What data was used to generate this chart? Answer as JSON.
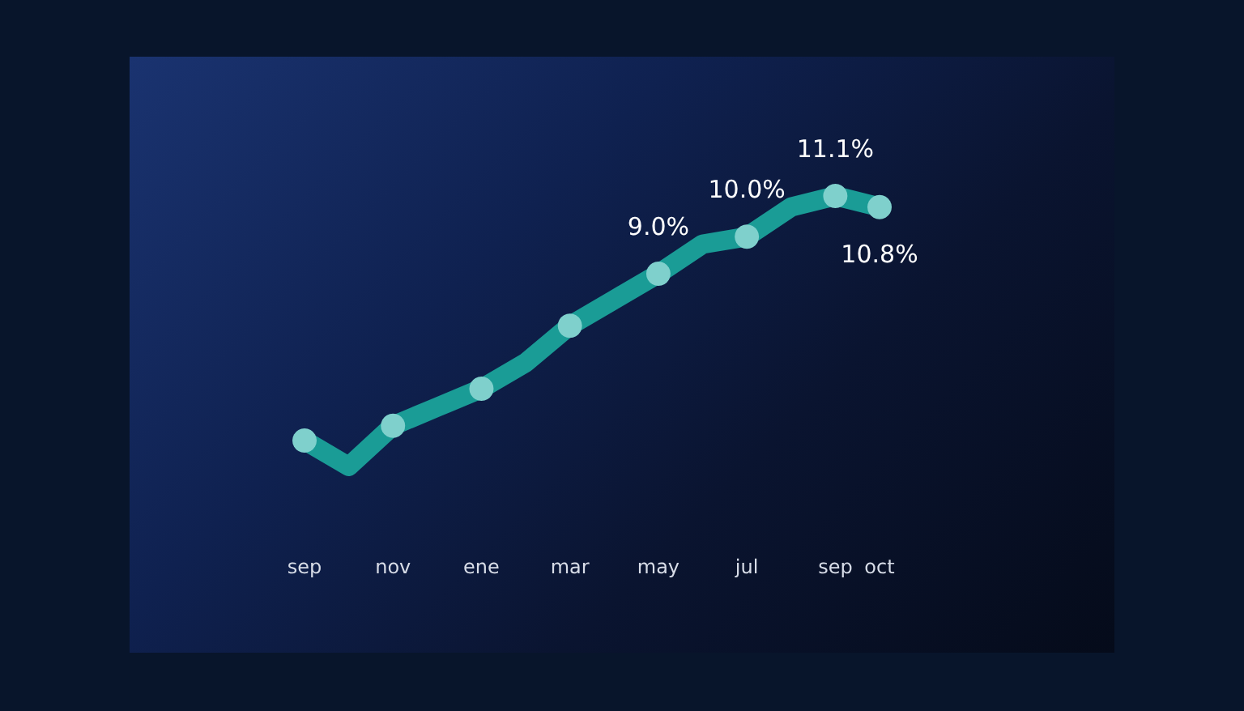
{
  "chart_data": {
    "type": "line",
    "categories": [
      "sep",
      null,
      "nov",
      null,
      "ene",
      null,
      "mar",
      null,
      "may",
      null,
      "jul",
      null,
      "sep",
      "oct"
    ],
    "series": [
      {
        "color": "#1a9c96",
        "values": [
          4.5,
          3.8,
          4.9,
          5.4,
          5.9,
          6.6,
          7.6,
          8.3,
          9.0,
          9.8,
          10.0,
          10.8,
          11.1,
          10.8
        ],
        "value_labels": [
          null,
          null,
          null,
          null,
          null,
          null,
          null,
          null,
          "9.0%",
          null,
          "10.0%",
          null,
          "11.1%",
          "10.8%"
        ]
      }
    ],
    "marker": "circle",
    "grid": false
  }
}
